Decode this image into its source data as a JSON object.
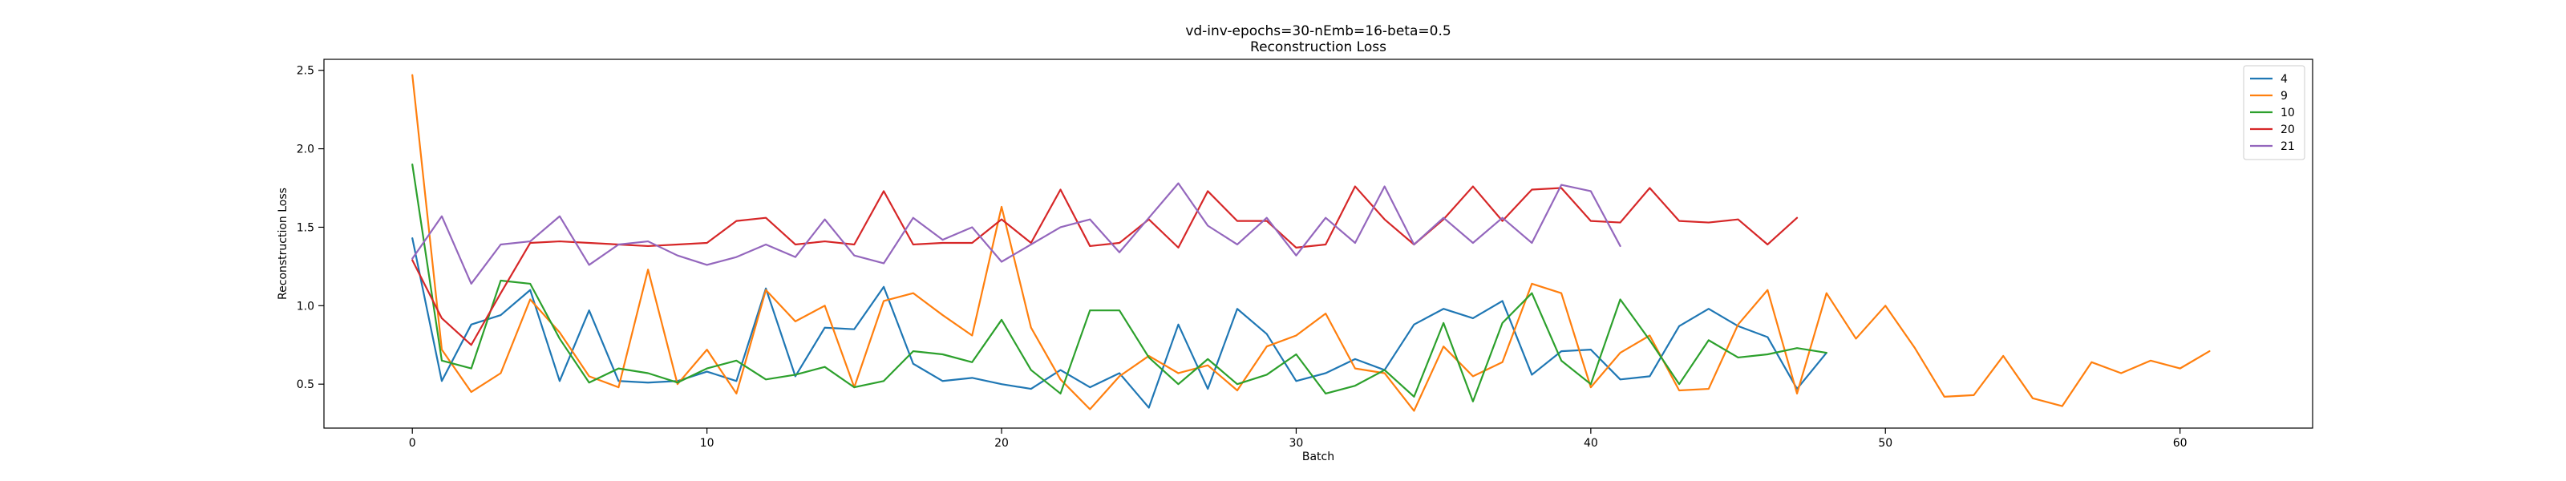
{
  "chart_data": {
    "type": "line",
    "title": "vd-inv-epochs=30-nEmb=16-beta=0.5",
    "subtitle": "Reconstruction Loss",
    "xlabel": "Batch",
    "ylabel": "Reconstruction Loss",
    "xlim": [
      -3,
      64.5
    ],
    "ylim": [
      0.22,
      2.57
    ],
    "xticks": [
      0,
      10,
      20,
      30,
      40,
      50,
      60
    ],
    "yticks": [
      0.5,
      1.0,
      1.5,
      2.0,
      2.5
    ],
    "xtick_labels": [
      "0",
      "10",
      "20",
      "30",
      "40",
      "50",
      "60"
    ],
    "ytick_labels": [
      "0.5",
      "1.0",
      "1.5",
      "2.0",
      "2.5"
    ],
    "grid": false,
    "legend_position": "top-right",
    "series": [
      {
        "name": "4",
        "color": "#1f77b4",
        "values": [
          1.43,
          0.52,
          0.88,
          0.94,
          1.1,
          0.52,
          0.97,
          0.52,
          0.51,
          0.52,
          0.58,
          0.52,
          1.11,
          0.55,
          0.86,
          0.85,
          1.12,
          0.63,
          0.52,
          0.54,
          0.5,
          0.47,
          0.59,
          0.48,
          0.57,
          0.35,
          0.88,
          0.47,
          0.98,
          0.82,
          0.52,
          0.57,
          0.66,
          0.59,
          0.88,
          0.98,
          0.92,
          1.03,
          0.56,
          0.71,
          0.72,
          0.53,
          0.55,
          0.87,
          0.98,
          0.87,
          0.8,
          0.47,
          0.7
        ]
      },
      {
        "name": "9",
        "color": "#ff7f0e",
        "values": [
          2.47,
          0.72,
          0.45,
          0.57,
          1.04,
          0.83,
          0.55,
          0.48,
          1.23,
          0.5,
          0.72,
          0.44,
          1.1,
          0.9,
          1.0,
          0.48,
          1.03,
          1.08,
          0.94,
          0.81,
          1.63,
          0.86,
          0.53,
          0.34,
          0.55,
          0.68,
          0.57,
          0.62,
          0.46,
          0.74,
          0.81,
          0.95,
          0.6,
          0.57,
          0.33,
          0.74,
          0.55,
          0.64,
          1.14,
          1.08,
          0.48,
          0.7,
          0.81,
          0.46,
          0.47,
          0.88,
          1.1,
          0.44,
          1.08,
          0.79,
          1.0,
          0.73,
          0.42,
          0.43,
          0.68,
          0.41,
          0.36,
          0.64,
          0.57,
          0.65,
          0.6,
          0.71
        ]
      },
      {
        "name": "10",
        "color": "#2ca02c",
        "values": [
          1.9,
          0.65,
          0.6,
          1.16,
          1.14,
          0.79,
          0.51,
          0.6,
          0.57,
          0.51,
          0.6,
          0.65,
          0.53,
          0.56,
          0.61,
          0.48,
          0.52,
          0.71,
          0.69,
          0.64,
          0.91,
          0.59,
          0.44,
          0.97,
          0.97,
          0.67,
          0.5,
          0.66,
          0.5,
          0.56,
          0.69,
          0.44,
          0.49,
          0.59,
          0.42,
          0.89,
          0.39,
          0.89,
          1.08,
          0.65,
          0.5,
          1.04,
          0.78,
          0.5,
          0.78,
          0.67,
          0.69,
          0.73,
          0.7
        ]
      },
      {
        "name": "20",
        "color": "#d62728",
        "values": [
          1.29,
          0.92,
          0.75,
          1.08,
          1.4,
          1.41,
          1.4,
          1.39,
          1.38,
          1.39,
          1.4,
          1.54,
          1.56,
          1.39,
          1.41,
          1.39,
          1.73,
          1.39,
          1.4,
          1.4,
          1.55,
          1.4,
          1.74,
          1.38,
          1.4,
          1.55,
          1.37,
          1.73,
          1.54,
          1.54,
          1.37,
          1.39,
          1.76,
          1.55,
          1.39,
          1.55,
          1.76,
          1.54,
          1.74,
          1.75,
          1.54,
          1.53,
          1.75,
          1.54,
          1.53,
          1.55,
          1.39,
          1.56
        ]
      },
      {
        "name": "21",
        "color": "#9467bd",
        "values": [
          1.3,
          1.57,
          1.14,
          1.39,
          1.41,
          1.57,
          1.26,
          1.39,
          1.41,
          1.32,
          1.26,
          1.31,
          1.39,
          1.31,
          1.55,
          1.32,
          1.27,
          1.56,
          1.42,
          1.5,
          1.28,
          1.39,
          1.5,
          1.55,
          1.34,
          1.56,
          1.78,
          1.51,
          1.39,
          1.56,
          1.32,
          1.56,
          1.4,
          1.76,
          1.39,
          1.56,
          1.4,
          1.56,
          1.4,
          1.77,
          1.73,
          1.38
        ]
      }
    ]
  }
}
